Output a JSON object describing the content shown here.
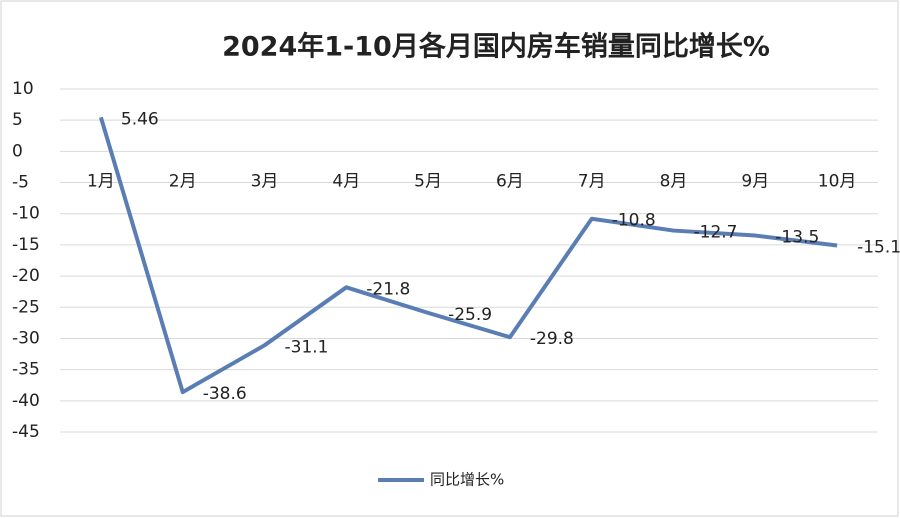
{
  "chart_data": {
    "type": "line",
    "title": "2024年1-10月各月国内房车销量同比增长%",
    "categories": [
      "1月",
      "2月",
      "3月",
      "4月",
      "5月",
      "6月",
      "7月",
      "8月",
      "9月",
      "10月"
    ],
    "series": [
      {
        "name": "同比增长%",
        "color": "#5a7db4",
        "values": [
          5.46,
          -38.6,
          -31.1,
          -21.8,
          -25.9,
          -29.8,
          -10.8,
          -12.7,
          -13.5,
          -15.1
        ]
      }
    ],
    "ylim": [
      -45,
      10
    ],
    "yticks": [
      10,
      5,
      0,
      -5,
      -10,
      -15,
      -20,
      -25,
      -30,
      -35,
      -40,
      -45
    ],
    "grid": true,
    "legend": "bottom"
  }
}
